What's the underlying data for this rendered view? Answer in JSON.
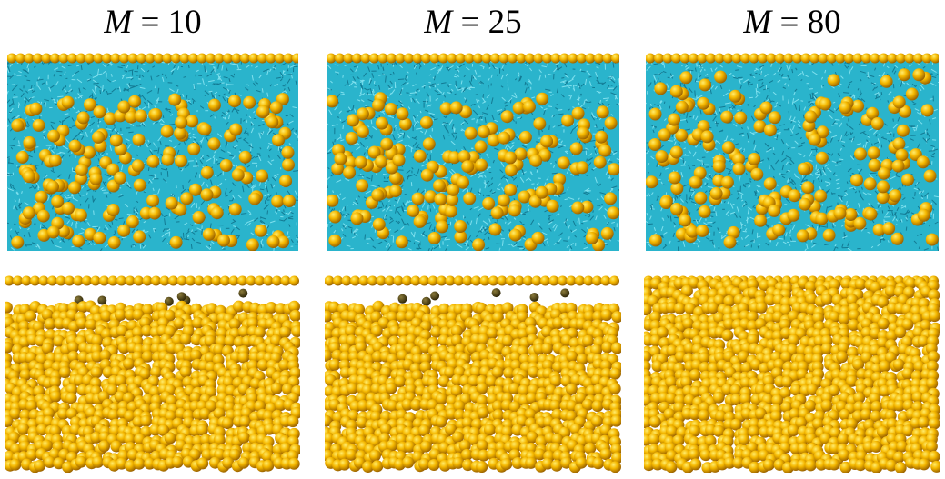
{
  "columns": [
    {
      "symbol": "M",
      "equals": " = ",
      "value": "10"
    },
    {
      "symbol": "M",
      "equals": " = ",
      "value": "25"
    },
    {
      "symbol": "M",
      "equals": " = ",
      "value": "80"
    }
  ],
  "colors": {
    "solvent": "#2ab4cc",
    "solvent_dark": "#137a93",
    "solvent_light": "#7fe0ee",
    "particle": "#f5b800",
    "particle_highlight": "#ffec6e",
    "particle_shadow": "#9a6200"
  }
}
